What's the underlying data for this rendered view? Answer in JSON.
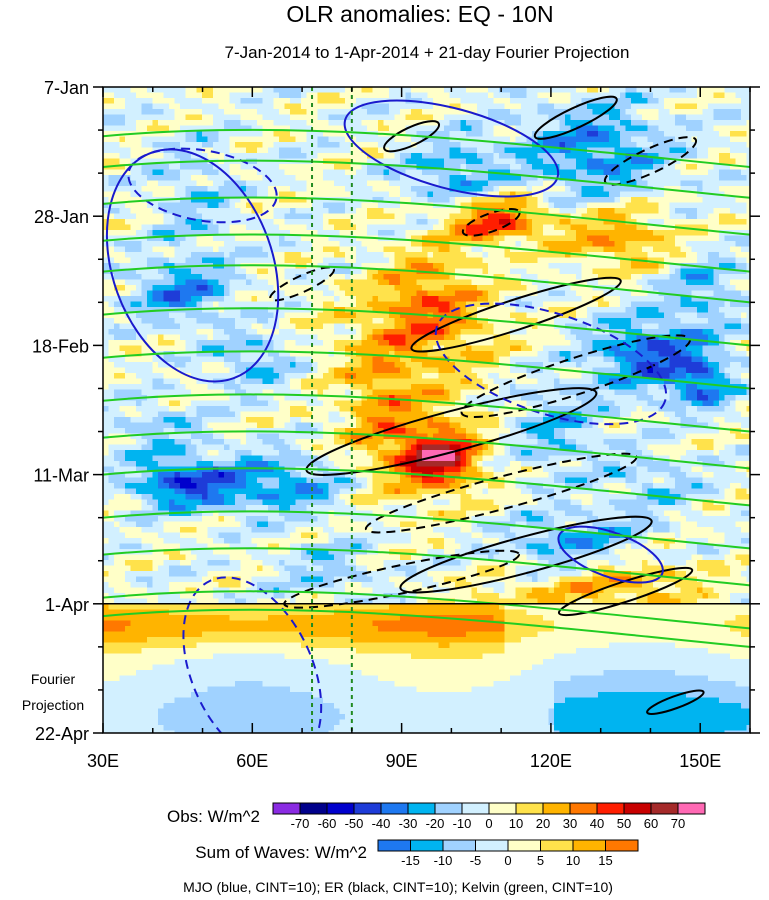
{
  "chart_data": {
    "type": "heatmap",
    "title": "OLR anomalies: EQ - 10N",
    "subtitle": "7-Jan-2014 to 1-Apr-2014 + 21-day Fourier Projection",
    "x_ticks": [
      {
        "value": 30,
        "label": "30E"
      },
      {
        "value": 60,
        "label": "60E"
      },
      {
        "value": 90,
        "label": "90E"
      },
      {
        "value": 120,
        "label": "120E"
      },
      {
        "value": 150,
        "label": "150E"
      }
    ],
    "xlim": [
      30,
      160
    ],
    "y_ticks": [
      {
        "day": 0,
        "label": "7-Jan"
      },
      {
        "day": 21,
        "label": "28-Jan"
      },
      {
        "day": 42,
        "label": "18-Feb"
      },
      {
        "day": 63,
        "label": "11-Mar"
      },
      {
        "day": 84,
        "label": "1-Apr"
      },
      {
        "day": 105,
        "label": "22-Apr"
      }
    ],
    "projection_label_line1": "Fourier",
    "projection_label_line2": "Projection",
    "projection_start_day": 84,
    "reference_longitudes": [
      72,
      80
    ],
    "obs_legend": {
      "label": "Obs: W/m^2",
      "levels": [
        "-70",
        "-60",
        "-50",
        "-40",
        "-30",
        "-20",
        "-10",
        "0",
        "10",
        "20",
        "30",
        "40",
        "50",
        "60",
        "70"
      ],
      "colors": [
        "#8a2be2",
        "#00008b",
        "#0000cd",
        "#1e3cd8",
        "#1e78f0",
        "#00b4f0",
        "#a0d2ff",
        "#d2f0ff",
        "#ffffc8",
        "#ffe24b",
        "#ffb400",
        "#ff7800",
        "#ff1e00",
        "#c80000",
        "#a52a2a",
        "#ff69b4"
      ]
    },
    "wave_legend": {
      "label": "Sum of Waves: W/m^2",
      "levels": [
        "-15",
        "-10",
        "-5",
        "0",
        "5",
        "10",
        "15"
      ],
      "colors": [
        "#1e78f0",
        "#00b4f0",
        "#a0d2ff",
        "#d2f0ff",
        "#ffffc8",
        "#ffe24b",
        "#ffb400",
        "#ff7800"
      ]
    },
    "footer": "MJO (blue, CINT=10); ER (black, CINT=10); Kelvin (green, CINT=10)",
    "contour_colors": {
      "mjo": "#1a1acd",
      "er": "#000000",
      "kelvin": "#22cc22"
    }
  }
}
